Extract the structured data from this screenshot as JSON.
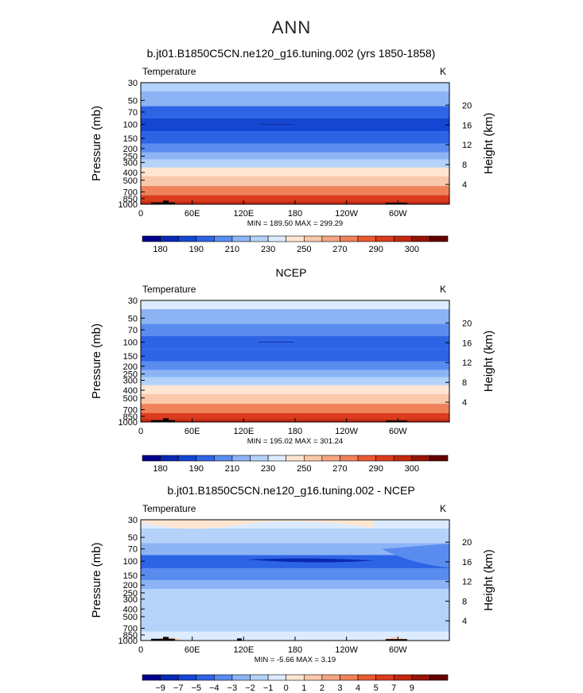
{
  "page": {
    "title": "ANN"
  },
  "colors": {
    "main": [
      "#00008c",
      "#0a28b4",
      "#1446d2",
      "#2d64e6",
      "#5a8cf0",
      "#8cb4f5",
      "#b4d2fa",
      "#dcebff",
      "#ffe6d2",
      "#fac8aa",
      "#f5a582",
      "#f0825a",
      "#eb5a32",
      "#dc3c1e",
      "#c3280f",
      "#961405",
      "#640000"
    ],
    "diff": [
      "#00008c",
      "#0a28b4",
      "#1446d2",
      "#2d64e6",
      "#5a8cf0",
      "#8cb4f5",
      "#b4d2fa",
      "#dcebff",
      "#ffe6d2",
      "#fac8aa",
      "#f5a582",
      "#f0825a",
      "#eb5a32",
      "#dc3c1e",
      "#c3280f",
      "#961405",
      "#640000"
    ]
  },
  "chart_data": [
    {
      "id": "model",
      "type": "contour",
      "title": "b.jt01.B1850C5CN.ne120_g16.tuning.002 (yrs 1850-1858)",
      "variable": "Temperature",
      "units": "K",
      "ylabel": "Pressure  (mb)",
      "y2label": "Height  (km)",
      "pressure_ticks": [
        "30",
        "50",
        "70",
        "100",
        "150",
        "200",
        "250",
        "300",
        "400",
        "500",
        "700",
        "850",
        "1000"
      ],
      "height_ticks": [
        "20",
        "16",
        "12",
        "8",
        "4"
      ],
      "lon_ticks": [
        "0",
        "60E",
        "120E",
        "180",
        "120W",
        "60W"
      ],
      "minmax": "MIN = 189.50   MAX = 299.29",
      "colorbar_labels": [
        "180",
        "190",
        "210",
        "230",
        "250",
        "270",
        "290",
        "300"
      ],
      "levels_bin": [
        [
          30,
          6
        ],
        [
          50,
          5
        ],
        [
          70,
          3
        ],
        [
          100,
          2
        ],
        [
          150,
          3
        ],
        [
          200,
          4
        ],
        [
          250,
          5
        ],
        [
          300,
          6
        ],
        [
          400,
          8
        ],
        [
          500,
          9
        ],
        [
          700,
          11
        ],
        [
          850,
          13
        ],
        [
          1000,
          14
        ]
      ]
    },
    {
      "id": "ncep",
      "type": "contour",
      "title": "NCEP",
      "variable": "Temperature",
      "units": "K",
      "ylabel": "Pressure  (mb)",
      "y2label": "Height  (km)",
      "pressure_ticks": [
        "30",
        "50",
        "70",
        "100",
        "150",
        "200",
        "250",
        "300",
        "400",
        "500",
        "700",
        "850",
        "1000"
      ],
      "height_ticks": [
        "20",
        "16",
        "12",
        "8",
        "4"
      ],
      "lon_ticks": [
        "0",
        "60E",
        "120E",
        "180",
        "120W",
        "60W"
      ],
      "minmax": "MIN = 195.02   MAX = 301.24",
      "colorbar_labels": [
        "180",
        "190",
        "210",
        "230",
        "250",
        "270",
        "290",
        "300"
      ],
      "levels_bin": [
        [
          30,
          7
        ],
        [
          50,
          5
        ],
        [
          70,
          4
        ],
        [
          100,
          3
        ],
        [
          150,
          3
        ],
        [
          200,
          4
        ],
        [
          250,
          5
        ],
        [
          300,
          6
        ],
        [
          400,
          8
        ],
        [
          500,
          9
        ],
        [
          700,
          11
        ],
        [
          850,
          13
        ],
        [
          1000,
          14
        ]
      ]
    },
    {
      "id": "diff",
      "type": "contour",
      "title": "b.jt01.B1850C5CN.ne120_g16.tuning.002 - NCEP",
      "variable": "Temperature",
      "units": "K",
      "ylabel": "Pressure  (mb)",
      "y2label": "Height  (km)",
      "pressure_ticks": [
        "30",
        "50",
        "70",
        "100",
        "150",
        "200",
        "250",
        "300",
        "400",
        "500",
        "700",
        "850",
        "1000"
      ],
      "height_ticks": [
        "20",
        "16",
        "12",
        "8",
        "4"
      ],
      "lon_ticks": [
        "0",
        "60E",
        "120E",
        "180",
        "120W",
        "60W"
      ],
      "minmax": "MIN =   -5.66   MAX =    3.19",
      "colorbar_labels": [
        "−9",
        "−7",
        "−5",
        "−4",
        "−3",
        "−2",
        "−1",
        "0",
        "1",
        "2",
        "3",
        "4",
        "5",
        "7",
        "9"
      ],
      "levels_bin": [
        [
          30,
          7
        ],
        [
          50,
          6
        ],
        [
          70,
          5
        ],
        [
          100,
          3
        ],
        [
          150,
          4
        ],
        [
          200,
          5
        ],
        [
          250,
          6
        ],
        [
          300,
          6
        ],
        [
          400,
          6
        ],
        [
          500,
          6
        ],
        [
          700,
          6
        ],
        [
          850,
          7
        ],
        [
          1000,
          7
        ]
      ]
    }
  ]
}
